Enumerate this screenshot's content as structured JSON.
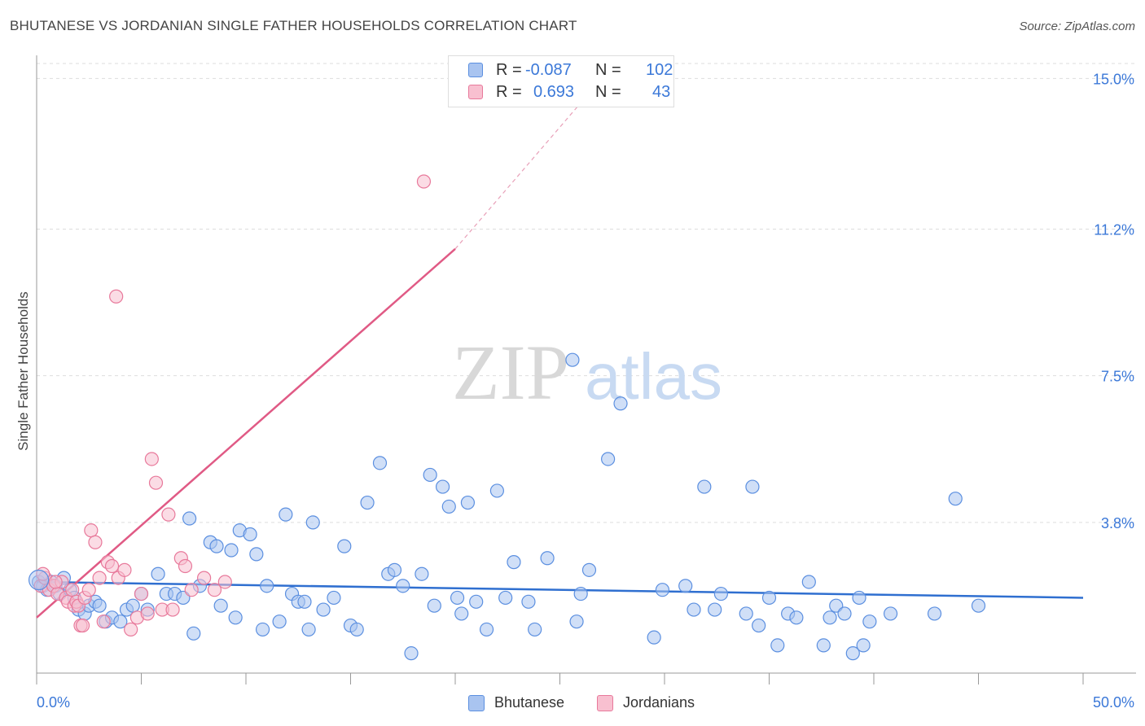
{
  "header": {
    "title": "BHUTANESE VS JORDANIAN SINGLE FATHER HOUSEHOLDS CORRELATION CHART",
    "source": "Source: ZipAtlas.com"
  },
  "watermark": {
    "zip": "ZIP",
    "atlas": "atlas"
  },
  "legend": {
    "rows": [
      {
        "r_label": "R =",
        "r_value": "-0.087",
        "n_label": "N =",
        "n_value": "102",
        "color": "#a9c4f0",
        "border": "#5b8fe0"
      },
      {
        "r_label": "R =",
        "r_value": "0.693",
        "n_label": "N =",
        "n_value": "43",
        "color": "#f8c0d0",
        "border": "#e8799b"
      }
    ]
  },
  "bottom_legend": [
    {
      "label": "Bhutanese",
      "color": "#a9c4f0",
      "border": "#5b8fe0"
    },
    {
      "label": "Jordanians",
      "color": "#f8c0d0",
      "border": "#e8799b"
    }
  ],
  "chart_data": {
    "type": "scatter",
    "title": "BHUTANESE VS JORDANIAN SINGLE FATHER HOUSEHOLDS CORRELATION CHART",
    "xlabel": "",
    "ylabel": "Single Father Households",
    "xlim": [
      0,
      50
    ],
    "ylim": [
      0,
      15.5
    ],
    "x_tick_labels": [
      "0.0%",
      "50.0%"
    ],
    "y_ticks": [
      3.8,
      7.5,
      11.2,
      15.0
    ],
    "y_tick_labels": [
      "3.8%",
      "7.5%",
      "11.2%",
      "15.0%"
    ],
    "grid": "horizontal dashed",
    "legend_position": "top-center",
    "series": [
      {
        "name": "Bhutanese",
        "color": "#5b8fe0",
        "fill": "#a9c4f0",
        "trend": {
          "x": [
            0,
            50
          ],
          "y": [
            2.3,
            1.9
          ],
          "color": "#2f6fd0"
        },
        "points": [
          [
            0.1,
            2.3
          ],
          [
            0.3,
            2.2
          ],
          [
            0.5,
            2.1
          ],
          [
            0.7,
            2.3
          ],
          [
            0.9,
            2.2
          ],
          [
            1.1,
            2.0
          ],
          [
            1.3,
            2.4
          ],
          [
            1.6,
            2.1
          ],
          [
            1.8,
            1.9
          ],
          [
            2.0,
            1.6
          ],
          [
            2.3,
            1.5
          ],
          [
            2.5,
            1.7
          ],
          [
            2.8,
            1.8
          ],
          [
            3.0,
            1.7
          ],
          [
            3.3,
            1.3
          ],
          [
            3.6,
            1.4
          ],
          [
            4.0,
            1.3
          ],
          [
            4.3,
            1.6
          ],
          [
            4.6,
            1.7
          ],
          [
            5.0,
            2.0
          ],
          [
            5.3,
            1.6
          ],
          [
            5.8,
            2.5
          ],
          [
            6.2,
            2.0
          ],
          [
            6.6,
            2.0
          ],
          [
            7.0,
            1.9
          ],
          [
            7.3,
            3.9
          ],
          [
            7.5,
            1.0
          ],
          [
            7.8,
            2.2
          ],
          [
            8.3,
            3.3
          ],
          [
            8.6,
            3.2
          ],
          [
            8.8,
            1.7
          ],
          [
            9.3,
            3.1
          ],
          [
            9.5,
            1.4
          ],
          [
            9.7,
            3.6
          ],
          [
            10.2,
            3.5
          ],
          [
            10.5,
            3.0
          ],
          [
            10.8,
            1.1
          ],
          [
            11.0,
            2.2
          ],
          [
            11.6,
            1.3
          ],
          [
            11.9,
            4.0
          ],
          [
            12.2,
            2.0
          ],
          [
            12.5,
            1.8
          ],
          [
            12.8,
            1.8
          ],
          [
            13.0,
            1.1
          ],
          [
            13.2,
            3.8
          ],
          [
            13.7,
            1.6
          ],
          [
            14.2,
            1.9
          ],
          [
            14.7,
            3.2
          ],
          [
            15.0,
            1.2
          ],
          [
            15.3,
            1.1
          ],
          [
            15.8,
            4.3
          ],
          [
            16.4,
            5.3
          ],
          [
            16.8,
            2.5
          ],
          [
            17.1,
            2.6
          ],
          [
            17.5,
            2.2
          ],
          [
            17.9,
            0.5
          ],
          [
            18.4,
            2.5
          ],
          [
            18.8,
            5.0
          ],
          [
            19.0,
            1.7
          ],
          [
            19.4,
            4.7
          ],
          [
            19.7,
            4.2
          ],
          [
            20.1,
            1.9
          ],
          [
            20.3,
            1.5
          ],
          [
            20.6,
            4.3
          ],
          [
            21.0,
            1.8
          ],
          [
            21.5,
            1.1
          ],
          [
            22.0,
            4.6
          ],
          [
            22.4,
            1.9
          ],
          [
            22.8,
            2.8
          ],
          [
            23.5,
            1.8
          ],
          [
            23.8,
            1.1
          ],
          [
            24.4,
            2.9
          ],
          [
            25.6,
            7.9
          ],
          [
            25.8,
            1.3
          ],
          [
            26.0,
            2.0
          ],
          [
            26.4,
            2.6
          ],
          [
            27.3,
            5.4
          ],
          [
            27.9,
            6.8
          ],
          [
            29.5,
            0.9
          ],
          [
            29.9,
            2.1
          ],
          [
            31.0,
            2.2
          ],
          [
            31.4,
            1.6
          ],
          [
            31.9,
            4.7
          ],
          [
            32.4,
            1.6
          ],
          [
            32.7,
            2.0
          ],
          [
            33.9,
            1.5
          ],
          [
            34.2,
            4.7
          ],
          [
            34.5,
            1.2
          ],
          [
            35.0,
            1.9
          ],
          [
            35.4,
            0.7
          ],
          [
            35.9,
            1.5
          ],
          [
            36.3,
            1.4
          ],
          [
            36.9,
            2.3
          ],
          [
            37.6,
            0.7
          ],
          [
            37.9,
            1.4
          ],
          [
            38.2,
            1.7
          ],
          [
            38.6,
            1.5
          ],
          [
            39.0,
            0.5
          ],
          [
            39.3,
            1.9
          ],
          [
            39.5,
            0.7
          ],
          [
            39.8,
            1.3
          ],
          [
            40.8,
            1.5
          ],
          [
            42.9,
            1.5
          ],
          [
            43.9,
            4.4
          ],
          [
            45.0,
            1.7
          ]
        ]
      },
      {
        "name": "Jordanians",
        "color": "#e8799b",
        "fill": "#f8c0d0",
        "trend": {
          "x": [
            0,
            20
          ],
          "y": [
            1.4,
            10.7
          ],
          "dashed_to": [
            27,
            15.0
          ],
          "color": "#e05a85"
        },
        "points": [
          [
            0.2,
            2.2
          ],
          [
            0.4,
            2.4
          ],
          [
            0.6,
            2.1
          ],
          [
            0.8,
            2.2
          ],
          [
            1.0,
            2.0
          ],
          [
            1.2,
            2.3
          ],
          [
            1.4,
            1.9
          ],
          [
            1.5,
            1.8
          ],
          [
            1.7,
            2.1
          ],
          [
            1.8,
            1.7
          ],
          [
            1.9,
            1.8
          ],
          [
            2.0,
            1.7
          ],
          [
            2.1,
            1.2
          ],
          [
            2.2,
            1.2
          ],
          [
            2.3,
            1.9
          ],
          [
            2.5,
            2.1
          ],
          [
            2.6,
            3.6
          ],
          [
            2.8,
            3.3
          ],
          [
            3.0,
            2.4
          ],
          [
            3.2,
            1.3
          ],
          [
            3.4,
            2.8
          ],
          [
            3.6,
            2.7
          ],
          [
            3.8,
            9.5
          ],
          [
            3.9,
            2.4
          ],
          [
            4.2,
            2.6
          ],
          [
            4.5,
            1.1
          ],
          [
            4.8,
            1.4
          ],
          [
            5.0,
            2.0
          ],
          [
            5.3,
            1.5
          ],
          [
            5.5,
            5.4
          ],
          [
            5.7,
            4.8
          ],
          [
            6.0,
            1.6
          ],
          [
            6.3,
            4.0
          ],
          [
            6.5,
            1.6
          ],
          [
            6.9,
            2.9
          ],
          [
            7.1,
            2.7
          ],
          [
            7.4,
            2.1
          ],
          [
            8.0,
            2.4
          ],
          [
            8.5,
            2.1
          ],
          [
            9.0,
            2.3
          ],
          [
            18.5,
            12.4
          ],
          [
            0.3,
            2.5
          ],
          [
            0.9,
            2.3
          ]
        ]
      }
    ]
  }
}
